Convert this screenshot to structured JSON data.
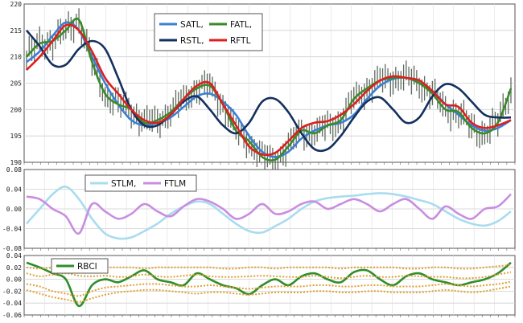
{
  "chart_data": [
    {
      "type": "line",
      "ylim": [
        190,
        220
      ],
      "yticks": [
        190,
        195,
        200,
        205,
        210,
        215,
        220
      ],
      "grid": true,
      "legend_position": "top-center",
      "candles_color": "#5f6b5f",
      "series": [
        {
          "name": "SATL,",
          "color": "#3b7fd6",
          "values": [
            209,
            211,
            214,
            216.5,
            215,
            210,
            205,
            201,
            198,
            197,
            197.5,
            198.5,
            200.5,
            202.5,
            203,
            201.5,
            199,
            195,
            192,
            191,
            192,
            194.5,
            196,
            197,
            197.5,
            199,
            202,
            204.5,
            205.8,
            206,
            205,
            203.5,
            201,
            199,
            197,
            196,
            196.5,
            198
          ]
        },
        {
          "name": "FATL,",
          "color": "#3a8a2a",
          "values": [
            210,
            212.5,
            213,
            215,
            217,
            209,
            203,
            201,
            200,
            197.5,
            198,
            199.5,
            202,
            204,
            204.5,
            201,
            196,
            194,
            191,
            190.5,
            193,
            196,
            195.5,
            197,
            198,
            202,
            204,
            205.5,
            206,
            206,
            205,
            203,
            200,
            199.5,
            196.5,
            195.5,
            197.5,
            204
          ]
        },
        {
          "name": "RSTL,",
          "color": "#14305e",
          "values": [
            215,
            212,
            208.5,
            208.5,
            211.5,
            213,
            211.5,
            206,
            200,
            197,
            197,
            199,
            201.5,
            202.5,
            200,
            197,
            195.5,
            197.5,
            201.5,
            202,
            199.5,
            195.5,
            192.5,
            192.5,
            195,
            198.5,
            201.5,
            202.3,
            200,
            197.5,
            198.5,
            202.5,
            204.8,
            204,
            201.5,
            199,
            198.5,
            198.5
          ]
        },
        {
          "name": "RFTL",
          "color": "#dd1f1f",
          "values": [
            207.5,
            210,
            213,
            216,
            215,
            211,
            206,
            203,
            200,
            198,
            197.5,
            199,
            202,
            204.5,
            205,
            201,
            197,
            193,
            191.5,
            191.8,
            194,
            196.5,
            197.5,
            197.8,
            199,
            201,
            203.5,
            205.5,
            206.3,
            206,
            205.5,
            203.5,
            201,
            200.5,
            197.5,
            196.5,
            197,
            198
          ]
        }
      ]
    },
    {
      "type": "line",
      "ylim": [
        -0.08,
        0.08
      ],
      "yticks": [
        "-0.08",
        "-0.04",
        "0.00",
        "0.04",
        "0.08"
      ],
      "grid": true,
      "legend_position": "top-left",
      "series": [
        {
          "name": "STLM,",
          "color": "#a8dcee",
          "values": [
            -0.03,
            0.0,
            0.03,
            0.045,
            0.02,
            -0.02,
            -0.05,
            -0.06,
            -0.058,
            -0.045,
            -0.03,
            -0.01,
            0.005,
            0.015,
            0.01,
            -0.01,
            -0.03,
            -0.045,
            -0.048,
            -0.035,
            -0.02,
            0.0,
            0.015,
            0.022,
            0.025,
            0.027,
            0.03,
            0.032,
            0.03,
            0.025,
            0.018,
            0.01,
            -0.005,
            -0.02,
            -0.03,
            -0.034,
            -0.025,
            -0.005
          ]
        },
        {
          "name": "FTLM",
          "color": "#c98ee0",
          "values": [
            0.025,
            0.02,
            0.0,
            -0.015,
            -0.05,
            0.01,
            -0.005,
            -0.02,
            -0.01,
            0.01,
            -0.005,
            -0.015,
            0.005,
            0.02,
            0.015,
            0.0,
            -0.02,
            -0.01,
            0.01,
            -0.01,
            -0.005,
            0.01,
            0.015,
            0.0,
            0.01,
            0.02,
            0.01,
            -0.005,
            0.01,
            0.02,
            0.0,
            -0.02,
            0.005,
            -0.01,
            -0.02,
            0.0,
            0.005,
            0.03
          ]
        }
      ]
    },
    {
      "type": "line",
      "ylim": [
        -0.06,
        0.04
      ],
      "yticks": [
        "-0.06",
        "-0.04",
        "-0.02",
        "0.00",
        "0.02",
        "0.04"
      ],
      "grid": true,
      "legend_position": "top-left",
      "series": [
        {
          "name": "RBCI",
          "color": "#2f8d2a",
          "values": [
            0.028,
            0.02,
            0.01,
            0.0,
            -0.045,
            -0.01,
            0.0,
            -0.005,
            0.005,
            0.015,
            0.0,
            -0.005,
            -0.01,
            0.01,
            0.0,
            -0.01,
            -0.015,
            -0.025,
            -0.01,
            0.0,
            -0.01,
            0.005,
            0.01,
            0.0,
            -0.005,
            0.012,
            0.015,
            0.0,
            -0.01,
            0.005,
            0.01,
            0.0,
            -0.005,
            -0.01,
            -0.005,
            0.0,
            0.01,
            0.028
          ]
        },
        {
          "color": "#e0a030",
          "values": [
            0.02,
            0.018,
            0.02,
            0.022,
            0.02,
            0.018,
            0.02,
            0.02,
            0.02,
            0.018,
            0.02,
            0.02,
            0.02,
            0.02,
            0.02,
            0.018,
            0.018,
            0.02,
            0.02,
            0.018,
            0.02,
            0.02,
            0.02,
            0.02,
            0.018,
            0.02,
            0.02,
            0.02,
            0.02,
            0.018,
            0.018,
            0.02,
            0.02,
            0.018,
            0.018,
            0.02,
            0.022,
            0.024
          ]
        },
        {
          "color": "#e0a030",
          "values": [
            0.01,
            0.005,
            0.008,
            0.01,
            0.006,
            0.005,
            0.006,
            0.004,
            0.005,
            0.008,
            0.005,
            0.004,
            0.006,
            0.008,
            0.005,
            0.004,
            0.004,
            0.005,
            0.006,
            0.005,
            0.004,
            0.004,
            0.006,
            0.004,
            0.002,
            0.004,
            0.006,
            0.004,
            0.004,
            0.006,
            0.005,
            0.004,
            0.004,
            0.002,
            0.002,
            0.004,
            0.008,
            0.012
          ]
        },
        {
          "color": "#e0a030",
          "values": [
            -0.008,
            -0.012,
            -0.02,
            -0.024,
            -0.028,
            -0.02,
            -0.014,
            -0.012,
            -0.01,
            -0.008,
            -0.008,
            -0.01,
            -0.012,
            -0.012,
            -0.01,
            -0.012,
            -0.014,
            -0.016,
            -0.014,
            -0.012,
            -0.012,
            -0.012,
            -0.01,
            -0.01,
            -0.012,
            -0.012,
            -0.01,
            -0.01,
            -0.012,
            -0.012,
            -0.012,
            -0.01,
            -0.008,
            -0.01,
            -0.012,
            -0.01,
            -0.008,
            -0.004
          ]
        },
        {
          "color": "#e0a030",
          "values": [
            -0.018,
            -0.024,
            -0.03,
            -0.034,
            -0.038,
            -0.032,
            -0.026,
            -0.022,
            -0.02,
            -0.018,
            -0.018,
            -0.02,
            -0.022,
            -0.024,
            -0.022,
            -0.022,
            -0.024,
            -0.026,
            -0.024,
            -0.022,
            -0.022,
            -0.022,
            -0.02,
            -0.02,
            -0.022,
            -0.022,
            -0.02,
            -0.02,
            -0.022,
            -0.022,
            -0.022,
            -0.02,
            -0.018,
            -0.02,
            -0.022,
            -0.02,
            -0.016,
            -0.012
          ]
        }
      ]
    }
  ]
}
